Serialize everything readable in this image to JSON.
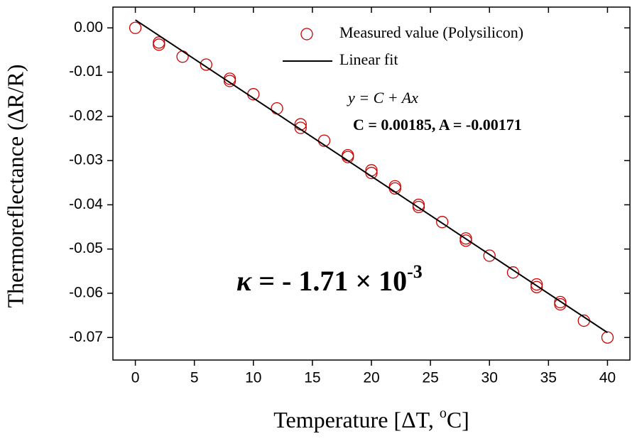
{
  "chart_data": {
    "type": "scatter",
    "xlabel": [
      "Temperature [ΔT, ",
      "o",
      "C]"
    ],
    "ylabel": "Thermoreflectance (ΔR/R)",
    "xlim": [
      -1.9,
      41.9
    ],
    "xticks": [
      0,
      5,
      10,
      15,
      20,
      25,
      30,
      35,
      40
    ],
    "ylim": [
      -0.0751,
      0.0047
    ],
    "yticks": [
      {
        "value": 0,
        "label": "0.00"
      },
      -0.01,
      -0.02,
      -0.03,
      -0.04,
      -0.05,
      -0.06,
      -0.07
    ],
    "legend": "upper right",
    "series": [
      {
        "name": "Measured value (Polysilicon)",
        "mode": "markers",
        "color": "#cc0000",
        "x": [
          0,
          2,
          2,
          4,
          6,
          8,
          8,
          10,
          12,
          14,
          14,
          16,
          18,
          18,
          20,
          20,
          22,
          22,
          24,
          24,
          26,
          28,
          28,
          30,
          32,
          34,
          34,
          36,
          36,
          38,
          40
        ],
        "values": [
          0,
          -0.0033,
          -0.0038,
          -0.0065,
          -0.0083,
          -0.0115,
          -0.012,
          -0.015,
          -0.0182,
          -0.0218,
          -0.0226,
          -0.0255,
          -0.0288,
          -0.0292,
          -0.0322,
          -0.0328,
          -0.0358,
          -0.0363,
          -0.04,
          -0.0405,
          -0.0439,
          -0.0476,
          -0.0481,
          -0.0515,
          -0.0553,
          -0.058,
          -0.0586,
          -0.062,
          -0.0625,
          -0.0662,
          -0.07
        ]
      },
      {
        "name": "Linear fit",
        "mode": "line",
        "color": "#000000",
        "x": [
          0,
          40
        ],
        "values": [
          0.0018,
          -0.0689
        ]
      }
    ],
    "annotations": {
      "equation": "y = C + Ax",
      "coefficients": "C = 0.00185, A = -0.00171",
      "kappa_symbol": "κ",
      "kappa": " = - 1.71 × 10",
      "kappa_exponent": "-3"
    }
  }
}
